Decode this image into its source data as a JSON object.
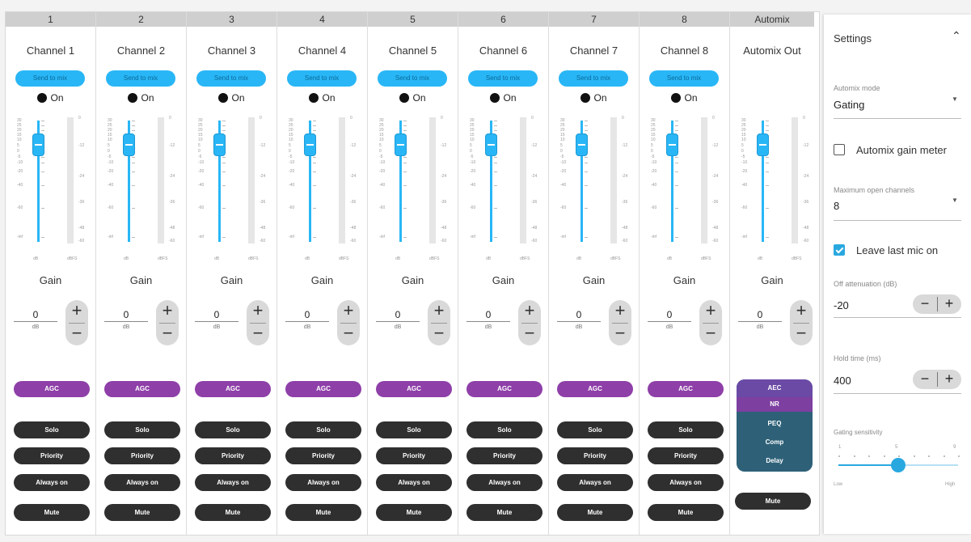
{
  "channels": [
    {
      "header": "1",
      "name": "Channel 1",
      "send": "Send to mix",
      "on": "On",
      "gain_value": "0",
      "agc": "AGC"
    },
    {
      "header": "2",
      "name": "Channel 2",
      "send": "Send to mix",
      "on": "On",
      "gain_value": "0",
      "agc": "AGC"
    },
    {
      "header": "3",
      "name": "Channel 3",
      "send": "Send to mix",
      "on": "On",
      "gain_value": "0",
      "agc": "AGC"
    },
    {
      "header": "4",
      "name": "Channel 4",
      "send": "Send to mix",
      "on": "On",
      "gain_value": "0",
      "agc": "AGC"
    },
    {
      "header": "5",
      "name": "Channel 5",
      "send": "Send to mix",
      "on": "On",
      "gain_value": "0",
      "agc": "AGC"
    },
    {
      "header": "6",
      "name": "Channel 6",
      "send": "Send to mix",
      "on": "On",
      "gain_value": "0",
      "agc": "AGC"
    },
    {
      "header": "7",
      "name": "Channel 7",
      "send": "Send to mix",
      "on": "On",
      "gain_value": "0",
      "agc": "AGC"
    },
    {
      "header": "8",
      "name": "Channel 8",
      "send": "Send to mix",
      "on": "On",
      "gain_value": "0",
      "agc": "AGC"
    }
  ],
  "automix": {
    "header": "Automix",
    "name": "Automix Out",
    "gain_value": "0",
    "dsp": [
      "AEC",
      "NR",
      "PEQ",
      "Comp",
      "Delay"
    ],
    "mute": "Mute"
  },
  "common": {
    "gain_label": "Gain",
    "gain_unit": "dB",
    "fader_unit": "dB",
    "meter_unit": "dBFS",
    "fader_ticks": [
      "30",
      "25",
      "20",
      "15",
      "10",
      "5",
      "0",
      "-5",
      "-10",
      "-20",
      "-40",
      "-60",
      "-inf"
    ],
    "meter_ticks": [
      "0",
      "-12",
      "-24",
      "-36",
      "-48",
      "-60"
    ],
    "solo": "Solo",
    "priority": "Priority",
    "always_on": "Always on",
    "mute": "Mute"
  },
  "settings": {
    "title": "Settings",
    "automix_mode_label": "Automix mode",
    "automix_mode_value": "Gating",
    "gain_meter_label": "Automix gain meter",
    "gain_meter_checked": false,
    "max_open_label": "Maximum open channels",
    "max_open_value": "8",
    "leave_last_label": "Leave last mic on",
    "leave_last_checked": true,
    "off_atten_label": "Off attenuation (dB)",
    "off_atten_value": "-20",
    "hold_label": "Hold time (ms)",
    "hold_value": "400",
    "sens_label": "Gating sensitivity",
    "sens_min": "1",
    "sens_mid": "5",
    "sens_max": "9",
    "sens_low": "Low",
    "sens_high": "High",
    "sens_value": 5
  },
  "colors": {
    "accent": "#29b6f6",
    "agc": "#8e3fa8",
    "pill": "#2f2f2f"
  }
}
